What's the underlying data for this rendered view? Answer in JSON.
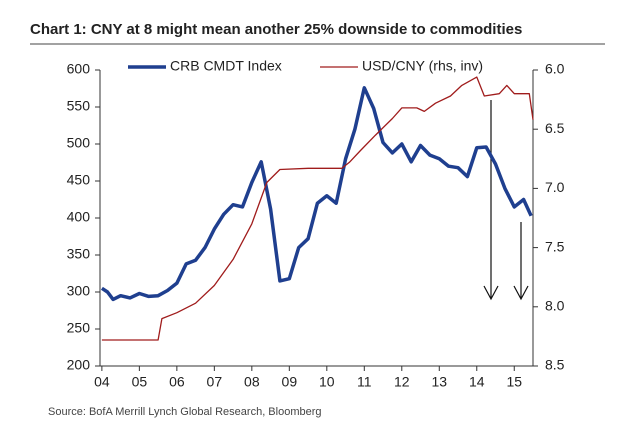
{
  "chart_data": {
    "type": "line",
    "title": "Chart 1: CNY at 8 might mean another 25% downside to commodities",
    "source": "Source: BofA Merrill Lynch Global Research, Bloomberg",
    "xlim": [
      2003.95,
      2015.5
    ],
    "xticks": [
      {
        "value": 2004,
        "label": "04"
      },
      {
        "value": 2005,
        "label": "05"
      },
      {
        "value": 2006,
        "label": "06"
      },
      {
        "value": 2007,
        "label": "07"
      },
      {
        "value": 2008,
        "label": "08"
      },
      {
        "value": 2009,
        "label": "09"
      },
      {
        "value": 2010,
        "label": "10"
      },
      {
        "value": 2011,
        "label": "11"
      },
      {
        "value": 2012,
        "label": "12"
      },
      {
        "value": 2013,
        "label": "13"
      },
      {
        "value": 2014,
        "label": "14"
      },
      {
        "value": 2015,
        "label": "15"
      }
    ],
    "ylim": [
      200,
      600
    ],
    "yticks": [
      200,
      250,
      300,
      350,
      400,
      450,
      500,
      550,
      600
    ],
    "y2lim": [
      8.5,
      6.0
    ],
    "y2ticks": [
      {
        "value": 6,
        "label": "6.0"
      },
      6.5,
      {
        "value": 7,
        "label": "7.0"
      },
      7.5,
      {
        "value": 8,
        "label": "8.0"
      },
      8.5
    ],
    "series": [
      {
        "name": "CRB CMDT Index",
        "color": "#1f3f8f",
        "x": [
          2004.0,
          2004.15,
          2004.3,
          2004.5,
          2004.75,
          2005.0,
          2005.25,
          2005.5,
          2005.75,
          2006.0,
          2006.25,
          2006.5,
          2006.75,
          2007.0,
          2007.25,
          2007.5,
          2007.75,
          2008.0,
          2008.25,
          2008.5,
          2008.75,
          2009.0,
          2009.25,
          2009.5,
          2009.75,
          2010.0,
          2010.25,
          2010.5,
          2010.75,
          2011.0,
          2011.25,
          2011.5,
          2011.75,
          2012.0,
          2012.25,
          2012.5,
          2012.75,
          2013.0,
          2013.25,
          2013.5,
          2013.75,
          2014.0,
          2014.25,
          2014.5,
          2014.75,
          2015.0,
          2015.25,
          2015.45
        ],
        "values": [
          305,
          300,
          290,
          295,
          292,
          298,
          294,
          295,
          302,
          312,
          338,
          343,
          360,
          385,
          405,
          418,
          415,
          448,
          476,
          412,
          315,
          318,
          360,
          372,
          420,
          430,
          420,
          480,
          520,
          576,
          548,
          502,
          488,
          500,
          476,
          498,
          485,
          480,
          470,
          468,
          456,
          495,
          496,
          473,
          440,
          415,
          425,
          403
        ]
      },
      {
        "name": "USD/CNY (rhs, inv)",
        "color": "#a01c1c",
        "axis": "y2",
        "x": [
          2004.0,
          2005.5,
          2005.6,
          2006.0,
          2006.5,
          2007.0,
          2007.5,
          2008.0,
          2008.4,
          2008.75,
          2009.5,
          2010.4,
          2010.6,
          2010.9,
          2011.3,
          2011.75,
          2012.0,
          2012.4,
          2012.6,
          2012.9,
          2013.3,
          2013.6,
          2014.0,
          2014.2,
          2014.6,
          2014.8,
          2015.0,
          2015.4,
          2015.5
        ],
        "values": [
          8.28,
          8.28,
          8.1,
          8.05,
          7.97,
          7.82,
          7.6,
          7.3,
          6.95,
          6.84,
          6.83,
          6.83,
          6.78,
          6.68,
          6.55,
          6.41,
          6.32,
          6.32,
          6.35,
          6.28,
          6.22,
          6.13,
          6.06,
          6.22,
          6.2,
          6.13,
          6.2,
          6.2,
          6.42
        ]
      }
    ],
    "legend": "top"
  }
}
